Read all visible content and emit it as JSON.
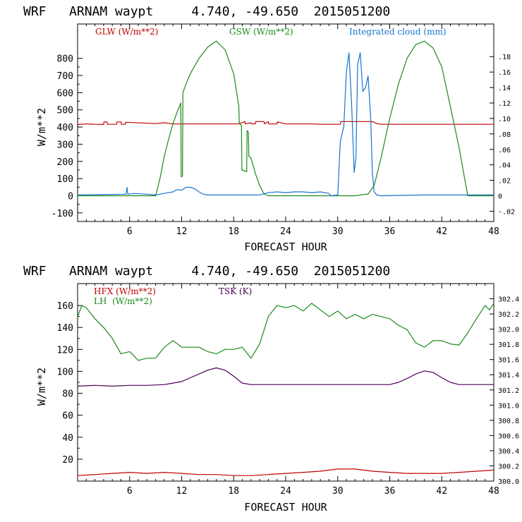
{
  "colors": {
    "red": "#c00000",
    "green": "#1a8a1a",
    "blue": "#1874cd",
    "purple": "#4b0055",
    "axis": "#000000"
  },
  "chart_data": [
    {
      "type": "line",
      "title": "WRF   ARNAM waypt     4.740, -49.650  2015051200",
      "xlabel": "FORECAST HOUR",
      "ylabel": "W/m**2",
      "xlim": [
        0,
        48
      ],
      "ylim": [
        -150,
        1000
      ],
      "xticks": [
        6,
        12,
        18,
        24,
        30,
        36,
        42,
        48
      ],
      "yticks": [
        -100,
        0,
        100,
        200,
        300,
        400,
        500,
        600,
        700,
        800
      ],
      "y2lim": [
        -0.0333,
        0.2222
      ],
      "y2ticks": [
        -0.02,
        0,
        0.02,
        0.04,
        0.06,
        0.08,
        0.1,
        0.12,
        0.14,
        0.16,
        0.18
      ],
      "y2ticklabels": [
        "-.02",
        "0",
        ".02",
        ".04",
        ".06",
        ".08",
        ".10",
        ".12",
        ".14",
        ".16",
        ".18"
      ],
      "series": [
        {
          "name": "GLW (W/m**2)",
          "color": "red",
          "axis": "left",
          "x": [
            0,
            1,
            2,
            3,
            3.05,
            3.4,
            3.45,
            4.5,
            4.55,
            5,
            5.05,
            5.5,
            5.55,
            9,
            10,
            11,
            12,
            13,
            14,
            15,
            16,
            17,
            18,
            18.5,
            19,
            19.3,
            19.35,
            20,
            20.05,
            20.5,
            20.55,
            21.5,
            21.55,
            22,
            22.05,
            23,
            23.05,
            24,
            25,
            26,
            27,
            28,
            29,
            29.5,
            30,
            30.3,
            30.35,
            31,
            32,
            33,
            34,
            34.5,
            35,
            36,
            38,
            40,
            42,
            44,
            46,
            48
          ],
          "y": [
            415,
            418,
            416,
            415,
            430,
            430,
            416,
            416,
            430,
            430,
            416,
            416,
            428,
            420,
            425,
            418,
            418,
            418,
            418,
            418,
            418,
            418,
            418,
            418,
            425,
            432,
            418,
            425,
            418,
            418,
            432,
            432,
            418,
            432,
            418,
            418,
            430,
            418,
            418,
            418,
            418,
            416,
            416,
            416,
            416,
            416,
            432,
            432,
            432,
            432,
            432,
            420,
            416,
            416,
            416,
            416,
            416,
            416,
            416,
            416
          ]
        },
        {
          "name": "GSW (W/m**2)",
          "color": "green",
          "axis": "left",
          "x": [
            0,
            9,
            9.5,
            10,
            10.5,
            11,
            11.5,
            11.9,
            11.95,
            12.1,
            12.15,
            12.5,
            13,
            14,
            15,
            16,
            17,
            18,
            18.6,
            18.65,
            18.9,
            18.95,
            19.5,
            19.55,
            19.7,
            19.75,
            20,
            20.5,
            21,
            21.5,
            22,
            30,
            32,
            33.5,
            34.2,
            35,
            36,
            37,
            38,
            39,
            40,
            41,
            42,
            43,
            44,
            45,
            48
          ],
          "y": [
            0,
            0,
            100,
            230,
            330,
            420,
            490,
            540,
            110,
            115,
            600,
            650,
            710,
            800,
            865,
            900,
            850,
            710,
            520,
            420,
            410,
            150,
            140,
            380,
            370,
            230,
            220,
            130,
            60,
            10,
            0,
            0,
            0,
            10,
            60,
            220,
            450,
            650,
            800,
            880,
            900,
            860,
            750,
            520,
            280,
            0,
            0
          ]
        },
        {
          "name": "Integrated cloud (mm)",
          "color": "blue",
          "axis": "right",
          "x": [
            0,
            5.6,
            5.7,
            5.8,
            6.5,
            8,
            9,
            10,
            11,
            11.5,
            12,
            12.5,
            13,
            13.5,
            14,
            14.5,
            15,
            16,
            17,
            18,
            19,
            20,
            21,
            22,
            23,
            24,
            25,
            26,
            27,
            28,
            29,
            29.2,
            29.3,
            30,
            30.3,
            30.7,
            31,
            31.3,
            31.6,
            31.9,
            32.1,
            32.3,
            32.6,
            32.9,
            33.2,
            33.5,
            33.8,
            34,
            34.2,
            34.5,
            35,
            40,
            44,
            48
          ],
          "y": [
            0.001,
            0.002,
            0.011,
            0.002,
            0.003,
            0.002,
            0.001,
            0.003,
            0.005,
            0.008,
            0.007,
            0.011,
            0.011,
            0.009,
            0.005,
            0.002,
            0.001,
            0.001,
            0.001,
            0.001,
            0.001,
            0.001,
            0.001,
            0.004,
            0.005,
            0.004,
            0.005,
            0.005,
            0.004,
            0.005,
            0.003,
            0.0,
            0.0,
            0.001,
            0.07,
            0.09,
            0.16,
            0.185,
            0.12,
            0.03,
            0.05,
            0.17,
            0.185,
            0.135,
            0.14,
            0.155,
            0.1,
            0.03,
            0.005,
            0.001,
            0.0,
            0.001,
            0.001,
            0.001
          ]
        }
      ]
    },
    {
      "type": "line",
      "title": "WRF   ARNAM waypt     4.740, -49.650  2015051200",
      "xlabel": "FORECAST HOUR",
      "ylabel": "W/m**2",
      "xlim": [
        0,
        48
      ],
      "ylim": [
        0,
        180
      ],
      "xticks": [
        6,
        12,
        18,
        24,
        30,
        36,
        42,
        48
      ],
      "yticks": [
        20,
        40,
        60,
        80,
        100,
        120,
        140,
        160
      ],
      "y2lim": [
        300.0,
        302.6
      ],
      "y2ticks": [
        300.0,
        300.2,
        300.4,
        300.6,
        300.8,
        301.0,
        301.2,
        301.4,
        301.6,
        301.8,
        302.0,
        302.2,
        302.4
      ],
      "y2ticklabels": [
        "300.0",
        "300.2",
        "300.4",
        "300.6",
        "300.8",
        "301.0",
        "301.2",
        "301.4",
        "301.6",
        "301.8",
        "302.0",
        "302.2",
        "302.4"
      ],
      "series": [
        {
          "name": "HFX (W/m**2)",
          "color": "red",
          "axis": "left",
          "x": [
            0,
            2,
            4,
            6,
            8,
            10,
            12,
            14,
            16,
            18,
            20,
            22,
            24,
            26,
            28,
            30,
            32,
            34,
            36,
            38,
            40,
            42,
            44,
            46,
            48
          ],
          "y": [
            5,
            6,
            7,
            8,
            7,
            8,
            7,
            6,
            6,
            5,
            5,
            6,
            7,
            8,
            9,
            11,
            11,
            9,
            8,
            7,
            7,
            7,
            8,
            9,
            10
          ]
        },
        {
          "name": "LH  (W/m**2)",
          "color": "green",
          "axis": "left",
          "x": [
            0,
            0.5,
            1,
            2,
            3,
            4,
            5,
            6,
            7,
            8,
            9,
            10,
            11,
            12,
            13,
            14,
            15,
            16,
            17,
            18,
            19,
            20,
            21,
            22,
            23,
            24,
            25,
            26,
            27,
            28,
            29,
            30,
            31,
            32,
            33,
            34,
            35,
            36,
            37,
            38,
            39,
            40,
            41,
            42,
            43,
            44,
            45,
            46,
            47,
            47.5,
            48
          ],
          "y": [
            150,
            160,
            158,
            148,
            140,
            130,
            116,
            118,
            110,
            112,
            112,
            122,
            128,
            122,
            122,
            122,
            118,
            116,
            120,
            120,
            122,
            112,
            125,
            150,
            160,
            158,
            160,
            155,
            162,
            156,
            150,
            155,
            148,
            152,
            148,
            152,
            150,
            148,
            142,
            138,
            126,
            122,
            128,
            128,
            125,
            124,
            135,
            148,
            160,
            156,
            162
          ]
        },
        {
          "name": "TSK (K)",
          "color": "purple",
          "axis": "right",
          "x": [
            0,
            2,
            4,
            6,
            8,
            10,
            11,
            12,
            13,
            14,
            15,
            16,
            17,
            18,
            19,
            20,
            22,
            24,
            26,
            28,
            30,
            32,
            34,
            36,
            37,
            38,
            39,
            40,
            41,
            42,
            43,
            44,
            46,
            48
          ],
          "y": [
            301.25,
            301.26,
            301.25,
            301.26,
            301.26,
            301.27,
            301.29,
            301.31,
            301.36,
            301.41,
            301.46,
            301.49,
            301.46,
            301.38,
            301.29,
            301.27,
            301.27,
            301.27,
            301.27,
            301.27,
            301.27,
            301.27,
            301.27,
            301.27,
            301.3,
            301.35,
            301.41,
            301.45,
            301.43,
            301.36,
            301.3,
            301.27,
            301.27,
            301.27
          ]
        }
      ]
    }
  ]
}
